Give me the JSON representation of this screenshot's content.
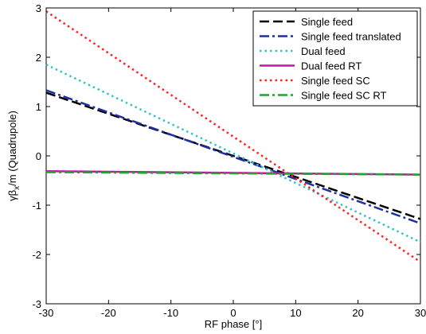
{
  "chart_data": {
    "type": "line",
    "xlabel": "RF phase [°]",
    "ylabel_main": "γβ",
    "ylabel_sub": "x",
    "ylabel_rest": "/m (Quadrupole)",
    "xlim": [
      -30,
      30
    ],
    "ylim": [
      -3,
      3
    ],
    "xticks": [
      -30,
      -20,
      -10,
      0,
      10,
      20,
      30
    ],
    "yticks": [
      -3,
      -2,
      -1,
      0,
      1,
      2,
      3
    ],
    "grid": false,
    "legend_position": "top-right",
    "series": [
      {
        "name": "Single feed",
        "color": "#000000",
        "dash": "long-dash",
        "x": [
          -30,
          30
        ],
        "y": [
          1.28,
          -1.28
        ]
      },
      {
        "name": "Single feed translated",
        "color": "#1f2f9f",
        "dash": "dash-dot",
        "x": [
          -30,
          30
        ],
        "y": [
          1.33,
          -1.37
        ]
      },
      {
        "name": "Dual feed",
        "color": "#33c4c4",
        "dash": "dotted",
        "x": [
          -30,
          30
        ],
        "y": [
          1.85,
          -1.75
        ]
      },
      {
        "name": "Dual feed RT",
        "color": "#c0189c",
        "dash": "solid",
        "x": [
          -30,
          30
        ],
        "y": [
          -0.31,
          -0.38
        ]
      },
      {
        "name": "Single feed SC",
        "color": "#ff2020",
        "dash": "dotted",
        "x": [
          -30,
          30
        ],
        "y": [
          2.93,
          -2.15
        ]
      },
      {
        "name": "Single feed SC RT",
        "color": "#1fa52f",
        "dash": "dash-dot",
        "x": [
          -30,
          30
        ],
        "y": [
          -0.33,
          -0.38
        ]
      }
    ]
  }
}
